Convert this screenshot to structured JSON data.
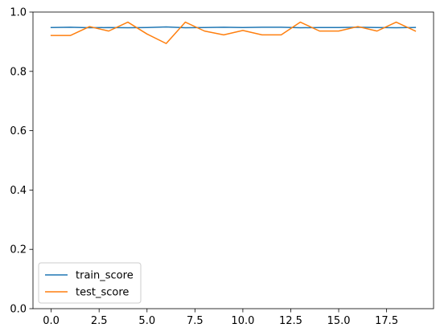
{
  "chart_data": {
    "type": "line",
    "x": [
      0,
      1,
      2,
      3,
      4,
      5,
      6,
      7,
      8,
      9,
      10,
      11,
      12,
      13,
      14,
      15,
      16,
      17,
      18,
      19
    ],
    "series": [
      {
        "name": "train_score",
        "color": "#1f77b4",
        "values": [
          0.948,
          0.949,
          0.947,
          0.948,
          0.947,
          0.948,
          0.95,
          0.947,
          0.948,
          0.949,
          0.948,
          0.949,
          0.949,
          0.947,
          0.948,
          0.948,
          0.949,
          0.948,
          0.947,
          0.948
        ]
      },
      {
        "name": "test_score",
        "color": "#ff7f0e",
        "values": [
          0.921,
          0.921,
          0.951,
          0.936,
          0.966,
          0.926,
          0.894,
          0.966,
          0.936,
          0.923,
          0.938,
          0.923,
          0.923,
          0.966,
          0.936,
          0.936,
          0.951,
          0.936,
          0.966,
          0.936
        ]
      }
    ],
    "xlim": [
      -0.95,
      19.95
    ],
    "ylim": [
      0.0,
      1.0
    ],
    "xticks": [
      0.0,
      2.5,
      5.0,
      7.5,
      10.0,
      12.5,
      15.0,
      17.5
    ],
    "xtick_labels": [
      "0.0",
      "2.5",
      "5.0",
      "7.5",
      "10.0",
      "12.5",
      "15.0",
      "17.5"
    ],
    "yticks": [
      0.0,
      0.2,
      0.4,
      0.6,
      0.8,
      1.0
    ],
    "ytick_labels": [
      "0.0",
      "0.2",
      "0.4",
      "0.6",
      "0.8",
      "1.0"
    ],
    "title": "",
    "xlabel": "",
    "ylabel": "",
    "grid": false,
    "legend_position": "lower-left"
  }
}
